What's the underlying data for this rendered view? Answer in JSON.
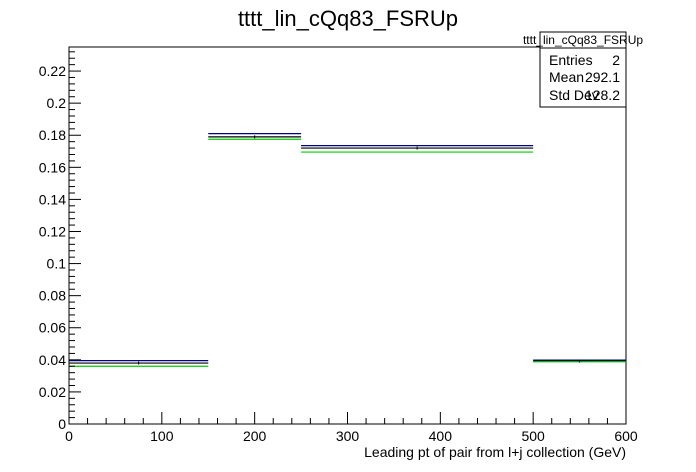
{
  "chart_data": {
    "type": "bar",
    "title": "tttt_lin_cQq83_FSRUp",
    "xlabel": "Leading pt of pair from l+j collection (GeV)",
    "ylabel": "",
    "xlim": [
      0,
      600
    ],
    "ylim": [
      0,
      0.235
    ],
    "x_ticks": [
      0,
      100,
      200,
      300,
      400,
      500,
      600
    ],
    "x_tick_labels": [
      "0",
      "100",
      "200",
      "300",
      "400",
      "500",
      "600"
    ],
    "y_ticks": [
      0,
      0.02,
      0.04,
      0.06,
      0.08,
      0.1,
      0.12,
      0.14,
      0.16,
      0.18,
      0.2,
      0.22
    ],
    "y_tick_labels": [
      "0",
      "0.02",
      "0.04",
      "0.06",
      "0.08",
      "0.1",
      "0.12",
      "0.14",
      "0.16",
      "0.18",
      "0.2",
      "0.22"
    ],
    "bins": [
      [
        0,
        150
      ],
      [
        150,
        250
      ],
      [
        250,
        500
      ],
      [
        500,
        600
      ]
    ],
    "series": [
      {
        "color": "#00008b",
        "values": [
          0.0395,
          0.181,
          0.1735,
          0.0398
        ]
      },
      {
        "color": "#000000",
        "values": [
          0.038,
          0.179,
          0.172,
          0.0392
        ]
      },
      {
        "color": "#00cc00",
        "values": [
          0.036,
          0.1775,
          0.1695,
          0.0388
        ]
      }
    ],
    "stats": {
      "name": "tttt_lin_cQq83_FSRUp",
      "rows": [
        {
          "label": "Entries",
          "value": "2"
        },
        {
          "label": "Mean",
          "value": "292.1"
        },
        {
          "label": "Std Dev",
          "value": "128.2"
        }
      ]
    },
    "grid": false,
    "legend": "top-right"
  }
}
